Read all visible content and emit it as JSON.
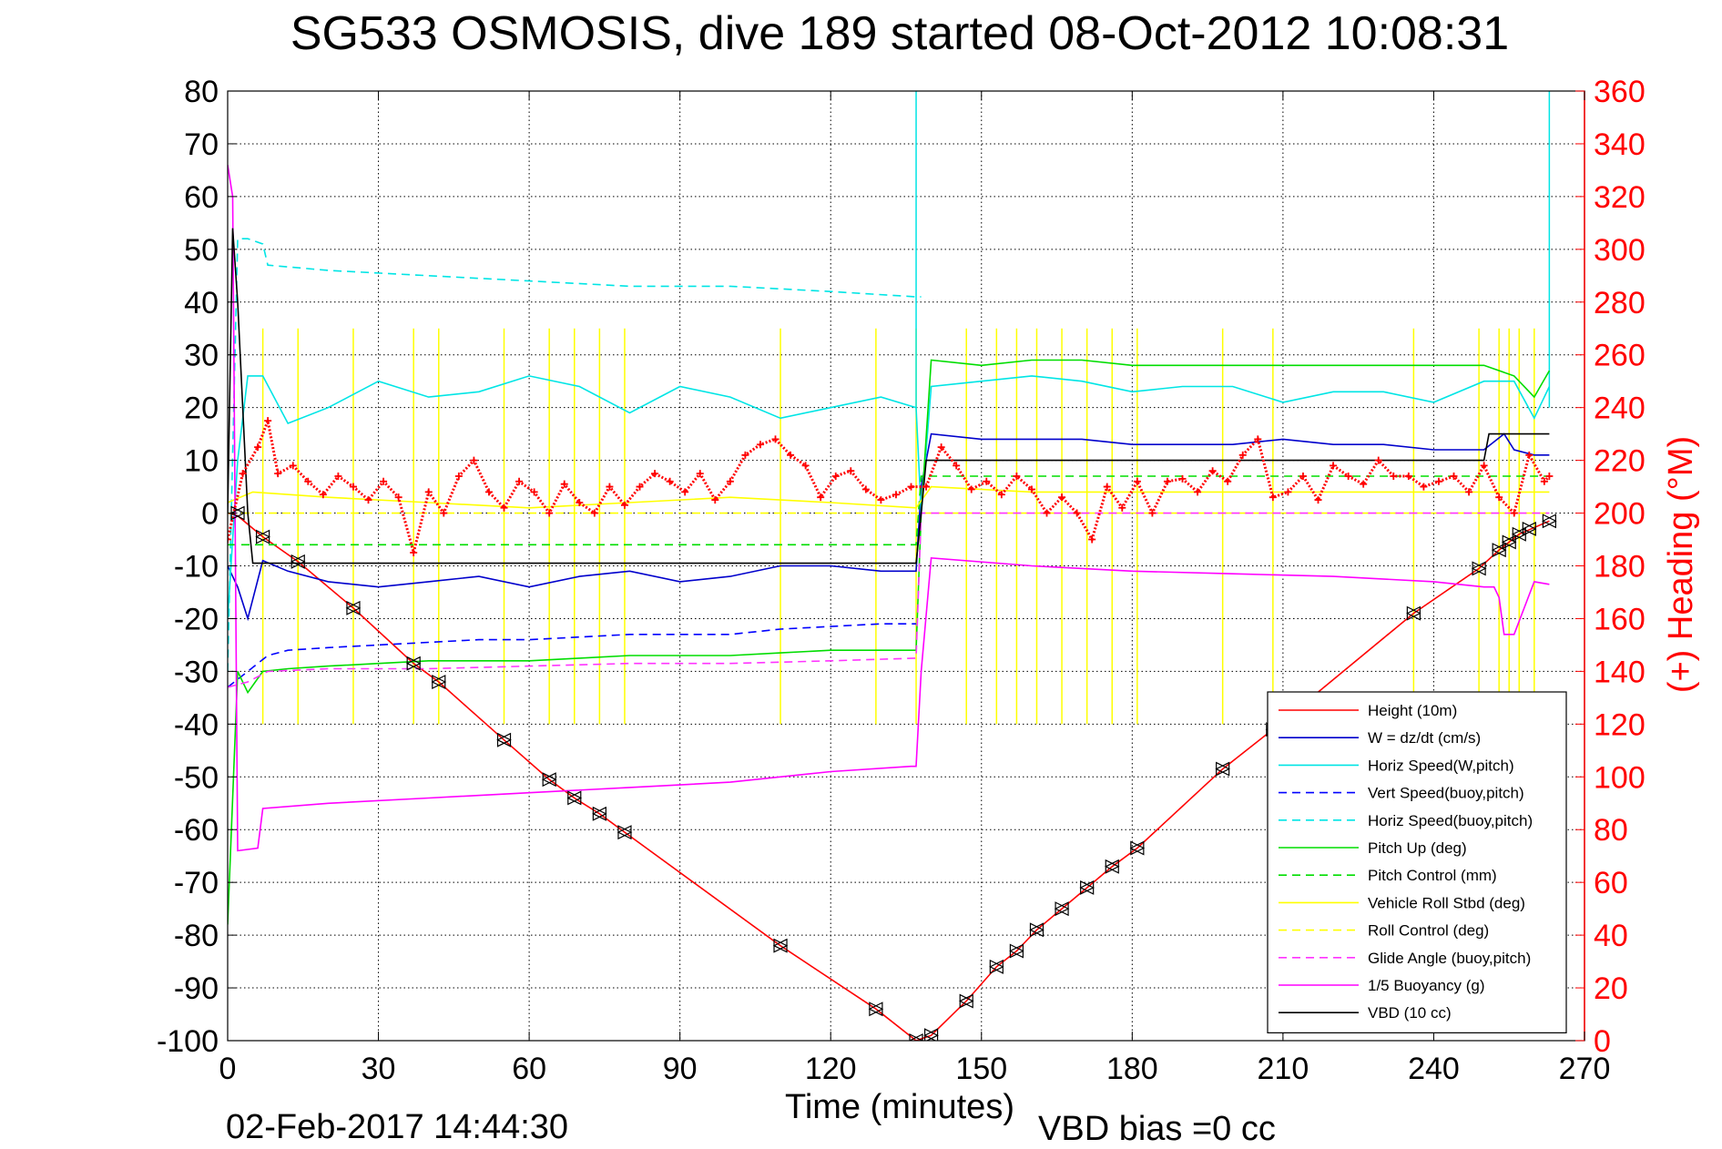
{
  "chart_data": {
    "type": "line",
    "title": "SG533 OSMOSIS, dive 189 started 08-Oct-2012 10:08:31",
    "xlabel": "Time (minutes)",
    "ylabel": "",
    "y2label": "(+) Heading (°M)",
    "xlim": [
      0,
      270
    ],
    "ylim": [
      -100,
      80
    ],
    "y2lim": [
      0,
      360
    ],
    "x_ticks": [
      0,
      30,
      60,
      90,
      120,
      150,
      180,
      210,
      240,
      270
    ],
    "y_ticks": [
      80,
      70,
      60,
      50,
      40,
      30,
      20,
      10,
      0,
      -10,
      -20,
      -30,
      -40,
      -50,
      -60,
      -70,
      -80,
      -90,
      -100
    ],
    "y2_ticks": [
      360,
      340,
      320,
      300,
      280,
      260,
      240,
      220,
      200,
      180,
      160,
      140,
      120,
      100,
      80,
      60,
      40,
      20,
      0
    ],
    "grid": true,
    "legend_position": "bottom-right",
    "footer_left": "02-Feb-2017 14:44:30",
    "footer_right": "VBD bias =0 cc",
    "series": [
      {
        "name": "Height (10m)",
        "color": "#ff0000",
        "style": "solid",
        "x": [
          0,
          2,
          7,
          14,
          25,
          37,
          42,
          55,
          64,
          69,
          74,
          79,
          110,
          129,
          137,
          140,
          147,
          153,
          157,
          161,
          166,
          171,
          176,
          181,
          198,
          208,
          236,
          249,
          253,
          255,
          257,
          263
        ],
        "y": [
          0,
          -0.5,
          -4.5,
          -9.2,
          -18,
          -28.5,
          -32,
          -43,
          -50.5,
          -54,
          -57,
          -60.5,
          -82,
          -94,
          -100,
          -99,
          -92.5,
          -86,
          -83,
          -79,
          -75,
          -71,
          -67,
          -63.5,
          -48.5,
          -41,
          -19,
          -10.5,
          -7,
          -5.5,
          -4,
          -1.5
        ]
      },
      {
        "name": "W = dz/dt (cm/s)",
        "color": "#0000cc",
        "style": "solid",
        "x": [
          0,
          2,
          4,
          7,
          12,
          20,
          30,
          40,
          50,
          60,
          70,
          80,
          90,
          100,
          110,
          120,
          130,
          137,
          138,
          140,
          150,
          160,
          170,
          180,
          190,
          200,
          210,
          220,
          230,
          240,
          250,
          254,
          256,
          260,
          263
        ],
        "y": [
          -10,
          -14,
          -20,
          -9,
          -11,
          -13,
          -14,
          -13,
          -12,
          -14,
          -12,
          -11,
          -13,
          -12,
          -10,
          -10,
          -11,
          -11,
          5,
          15,
          14,
          14,
          14,
          13,
          13,
          13,
          14,
          13,
          13,
          12,
          12,
          15,
          12,
          11,
          11
        ]
      },
      {
        "name": "Horiz Speed(W,pitch)",
        "color": "#00e5e5",
        "style": "solid",
        "x": [
          0,
          2,
          4,
          7,
          12,
          20,
          30,
          40,
          50,
          60,
          70,
          80,
          90,
          100,
          110,
          120,
          130,
          137,
          138,
          140,
          150,
          160,
          170,
          180,
          190,
          200,
          210,
          220,
          230,
          240,
          250,
          256,
          260,
          263
        ],
        "y": [
          -20,
          10,
          26,
          26,
          17,
          20,
          25,
          22,
          23,
          26,
          24,
          19,
          24,
          22,
          18,
          20,
          22,
          20,
          0,
          24,
          25,
          26,
          25,
          23,
          24,
          24,
          21,
          23,
          23,
          21,
          25,
          25,
          18,
          24
        ]
      },
      {
        "name": "Vert Speed(buoy,pitch)",
        "color": "#0000ff",
        "style": "dashed",
        "x": [
          0,
          4,
          8,
          12,
          20,
          30,
          40,
          50,
          60,
          70,
          80,
          90,
          100,
          110,
          120,
          130,
          137
        ],
        "y": [
          -33,
          -30,
          -27,
          -26,
          -25.5,
          -25,
          -24.5,
          -24,
          -24,
          -23.5,
          -23,
          -23,
          -23,
          -22,
          -21.5,
          -21,
          -21
        ]
      },
      {
        "name": "Horiz Speed(buoy,pitch)",
        "color": "#00e5e5",
        "style": "dashed",
        "x": [
          0,
          2,
          4,
          7,
          8,
          20,
          40,
          60,
          80,
          100,
          120,
          137,
          138
        ],
        "y": [
          -30,
          52,
          52,
          51,
          47,
          46,
          45,
          44,
          43,
          43,
          42,
          41,
          41
        ]
      },
      {
        "name": "Pitch Up (deg)",
        "color": "#00dd00",
        "style": "solid",
        "x": [
          0,
          2,
          4,
          7,
          12,
          20,
          30,
          40,
          50,
          60,
          70,
          80,
          90,
          100,
          110,
          120,
          130,
          137,
          138,
          140,
          150,
          160,
          170,
          180,
          190,
          200,
          210,
          220,
          230,
          240,
          250,
          256,
          260,
          263
        ],
        "y": [
          -78,
          -30,
          -34,
          -30,
          -29.5,
          -29,
          -28.5,
          -28,
          -28,
          -28,
          -27.5,
          -27,
          -27,
          -27,
          -26.5,
          -26,
          -26,
          -26,
          0,
          29,
          28,
          29,
          29,
          28,
          28,
          28,
          28,
          28,
          28,
          28,
          28,
          26,
          22,
          27
        ]
      },
      {
        "name": "Pitch Control (mm)",
        "color": "#00dd00",
        "style": "dashed",
        "x": [
          0,
          4,
          137,
          138,
          263
        ],
        "y": [
          -6,
          -6,
          -6,
          7,
          7
        ]
      },
      {
        "name": "Vehicle Roll Stbd (deg)",
        "color": "#ffff00",
        "style": "solid",
        "x": [
          0,
          5,
          20,
          40,
          60,
          80,
          100,
          120,
          137,
          140,
          160,
          180,
          200,
          220,
          240,
          263
        ],
        "y": [
          2,
          4,
          3,
          2,
          1,
          2,
          3,
          2,
          1,
          5,
          4,
          4,
          4,
          4,
          4,
          4
        ]
      },
      {
        "name": "Roll Control (deg)",
        "color": "#ffff00",
        "style": "dashed",
        "x": [
          0,
          137,
          138,
          263
        ],
        "y": [
          0,
          0,
          0,
          0
        ]
      },
      {
        "name": "Glide Angle (buoy,pitch)",
        "color": "#ff33ff",
        "style": "dashed",
        "x": [
          0,
          4,
          8,
          20,
          40,
          60,
          80,
          100,
          120,
          137,
          138,
          263
        ],
        "y": [
          -33,
          -32,
          -30,
          -29.5,
          -29.5,
          -29,
          -28.5,
          -28.5,
          -28,
          -27.5,
          0,
          0
        ]
      },
      {
        "name": "1/5 Buoyancy (g)",
        "color": "#ff00ff",
        "style": "solid",
        "x": [
          0,
          1,
          2,
          6,
          7,
          20,
          40,
          60,
          80,
          100,
          120,
          136,
          137,
          138,
          140,
          160,
          180,
          200,
          220,
          240,
          250,
          252,
          253,
          254,
          256,
          260,
          263
        ],
        "y": [
          66,
          60,
          -64,
          -63.5,
          -56,
          -55,
          -54,
          -53,
          -52,
          -51,
          -49,
          -48,
          -48,
          -30,
          -8.5,
          -10,
          -11,
          -11.5,
          -12,
          -13,
          -14,
          -14,
          -16,
          -23,
          -23,
          -13,
          -13.5
        ]
      },
      {
        "name": "VBD (10 cc)",
        "color": "#000000",
        "style": "solid",
        "x": [
          0,
          1,
          2,
          4,
          5,
          10,
          60,
          137,
          138,
          139,
          140,
          250,
          251,
          263
        ],
        "y": [
          0,
          54,
          40,
          0,
          -9.5,
          -9.5,
          -9.5,
          -9.5,
          0,
          10,
          10,
          10,
          15,
          15
        ]
      }
    ],
    "heading_series": {
      "name": "(+) Heading",
      "color": "#ff0000",
      "marker": "plus",
      "x": [
        0,
        3,
        6,
        8,
        10,
        13,
        16,
        19,
        22,
        25,
        28,
        31,
        34,
        37,
        40,
        43,
        46,
        49,
        52,
        55,
        58,
        61,
        64,
        67,
        70,
        73,
        76,
        79,
        82,
        85,
        88,
        91,
        94,
        97,
        100,
        103,
        106,
        109,
        112,
        115,
        118,
        121,
        124,
        127,
        130,
        133,
        136,
        139,
        142,
        145,
        148,
        151,
        154,
        157,
        160,
        163,
        166,
        169,
        172,
        175,
        178,
        181,
        184,
        187,
        190,
        193,
        196,
        199,
        202,
        205,
        208,
        211,
        214,
        217,
        220,
        223,
        226,
        229,
        232,
        235,
        238,
        241,
        244,
        247,
        250,
        253,
        256,
        259,
        262,
        263
      ],
      "y": [
        190,
        215,
        225,
        235,
        215,
        218,
        212,
        207,
        214,
        210,
        205,
        212,
        206,
        185,
        208,
        200,
        214,
        220,
        208,
        202,
        212,
        208,
        200,
        211,
        204,
        200,
        210,
        203,
        210,
        215,
        212,
        208,
        215,
        205,
        212,
        222,
        226,
        228,
        222,
        218,
        206,
        214,
        216,
        209,
        205,
        207,
        210,
        210,
        225,
        218,
        209,
        212,
        207,
        214,
        209,
        200,
        206,
        200,
        190,
        210,
        202,
        212,
        200,
        212,
        213,
        208,
        216,
        212,
        222,
        228,
        206,
        208,
        214,
        205,
        218,
        214,
        211,
        220,
        214,
        214,
        210,
        212,
        214,
        208,
        218,
        206,
        200,
        222,
        212,
        214
      ]
    },
    "triangle_markers": {
      "x": [
        2,
        7,
        14,
        25,
        37,
        42,
        55,
        64,
        69,
        74,
        79,
        110,
        129,
        137,
        140,
        147,
        153,
        157,
        161,
        166,
        171,
        176,
        181,
        198,
        208,
        236,
        249,
        253,
        255,
        257,
        259,
        263
      ],
      "y": [
        0,
        -4.5,
        -9.2,
        -18,
        -28.5,
        -32,
        -43,
        -50.5,
        -54,
        -57,
        -60.5,
        -82,
        -94,
        -100,
        -99,
        -92.5,
        -86,
        -83,
        -79,
        -75,
        -71,
        -67,
        -63.5,
        -48.5,
        -41,
        -19,
        -10.5,
        -7,
        -5.5,
        -4,
        -3,
        -1.5
      ]
    },
    "spikes": {
      "yellow_x": [
        7,
        14,
        25,
        37,
        42,
        55,
        64,
        69,
        74,
        79,
        110,
        129,
        137,
        147,
        153,
        157,
        161,
        166,
        171,
        176,
        181,
        198,
        208,
        236,
        249,
        253,
        255,
        257,
        260
      ],
      "cyan_x": [
        137,
        263
      ]
    }
  }
}
